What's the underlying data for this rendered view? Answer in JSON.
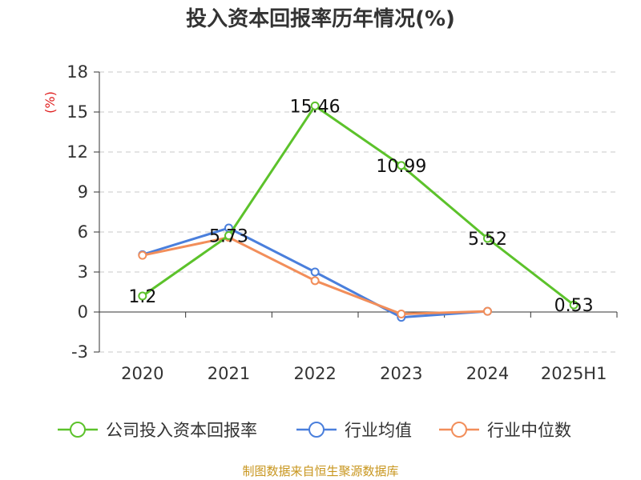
{
  "chart_data": {
    "type": "line",
    "title": "投入资本回报率历年情况(%)",
    "ylabel": "(%)",
    "xlabel": "",
    "categories": [
      "2020",
      "2021",
      "2022",
      "2023",
      "2024",
      "2025H1"
    ],
    "ylim": [
      -3,
      18
    ],
    "yticks": [
      "18",
      "15",
      "12",
      "9",
      "6",
      "3",
      "0",
      "-3"
    ],
    "grid": true,
    "legend_position": "bottom",
    "series": [
      {
        "name": "公司投入资本回报率",
        "color": "#5cc22b",
        "values": [
          1.2,
          5.73,
          15.46,
          10.99,
          5.52,
          0.53
        ],
        "labels": [
          "1.2",
          "5.73",
          "15.46",
          "10.99",
          "5.52",
          "0.53"
        ]
      },
      {
        "name": "行业均值",
        "color": "#4a7fdc",
        "values": [
          4.3,
          6.3,
          3.0,
          -0.4,
          0.05,
          null
        ]
      },
      {
        "name": "行业中位数",
        "color": "#f28e5a",
        "values": [
          4.25,
          5.6,
          2.35,
          -0.15,
          0.05,
          null
        ]
      }
    ]
  },
  "source": "制图数据来自恒生聚源数据库"
}
